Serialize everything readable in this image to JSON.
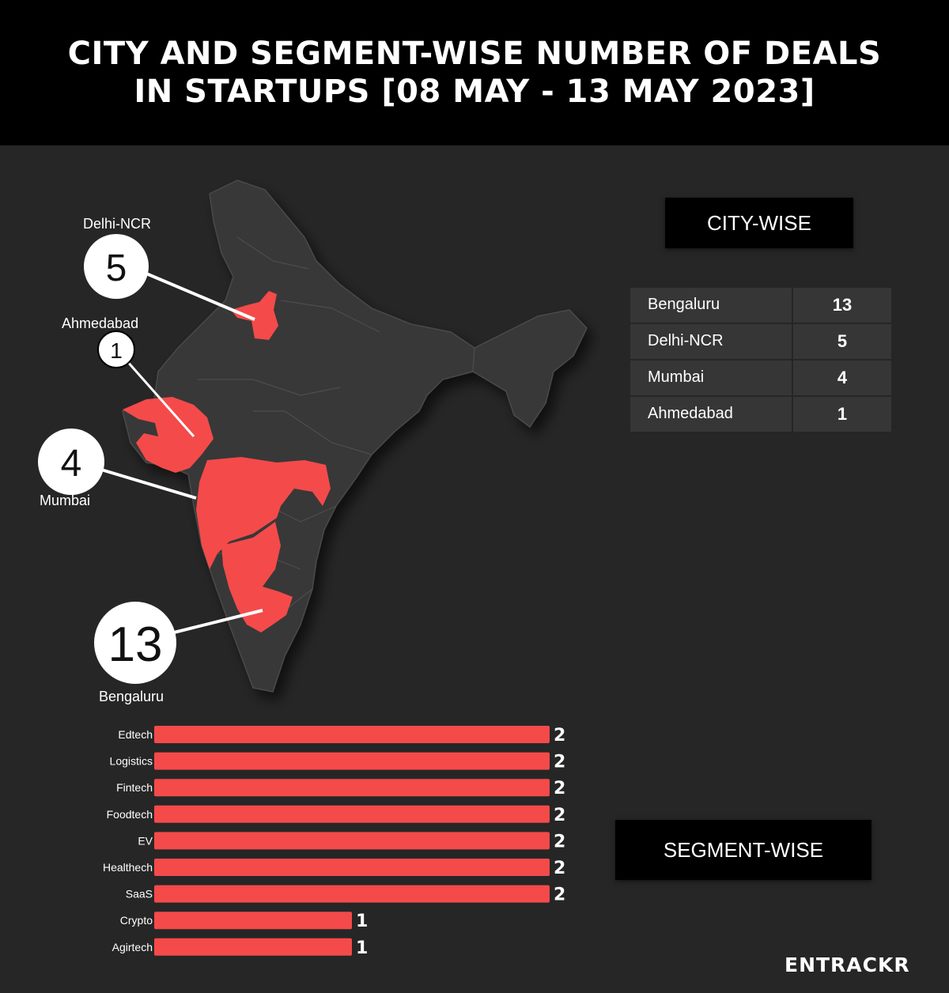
{
  "header": {
    "title_line1": "CITY AND SEGMENT-WISE NUMBER OF DEALS",
    "title_line2": "IN STARTUPS [08 MAY - 13 MAY 2023]"
  },
  "colors": {
    "highlight": "#f44a4a",
    "map_base": "#3a3a3a",
    "background": "#262626",
    "header_bg": "#000000"
  },
  "map": {
    "callouts": [
      {
        "city": "Delhi-NCR",
        "count": "5"
      },
      {
        "city": "Ahmedabad",
        "count": "1"
      },
      {
        "city": "Mumbai",
        "count": "4"
      },
      {
        "city": "Bengaluru",
        "count": "13"
      }
    ]
  },
  "city_section": {
    "heading": "CITY-WISE",
    "rows": [
      {
        "city": "Bengaluru",
        "count": "13"
      },
      {
        "city": "Delhi-NCR",
        "count": "5"
      },
      {
        "city": "Mumbai",
        "count": "4"
      },
      {
        "city": "Ahmedabad",
        "count": "1"
      }
    ]
  },
  "segment_section": {
    "heading": "SEGMENT-WISE"
  },
  "chart_data": {
    "type": "bar",
    "orientation": "horizontal",
    "categories": [
      "Edtech",
      "Logistics",
      "Fintech",
      "Foodtech",
      "EV",
      "Healthech",
      "SaaS",
      "Crypto",
      "Agirtech"
    ],
    "values": [
      2,
      2,
      2,
      2,
      2,
      2,
      2,
      1,
      1
    ],
    "bar_color": "#f44a4a",
    "grid": false,
    "legend": "none"
  },
  "brand": {
    "logo_text": "ENTRACKR"
  }
}
